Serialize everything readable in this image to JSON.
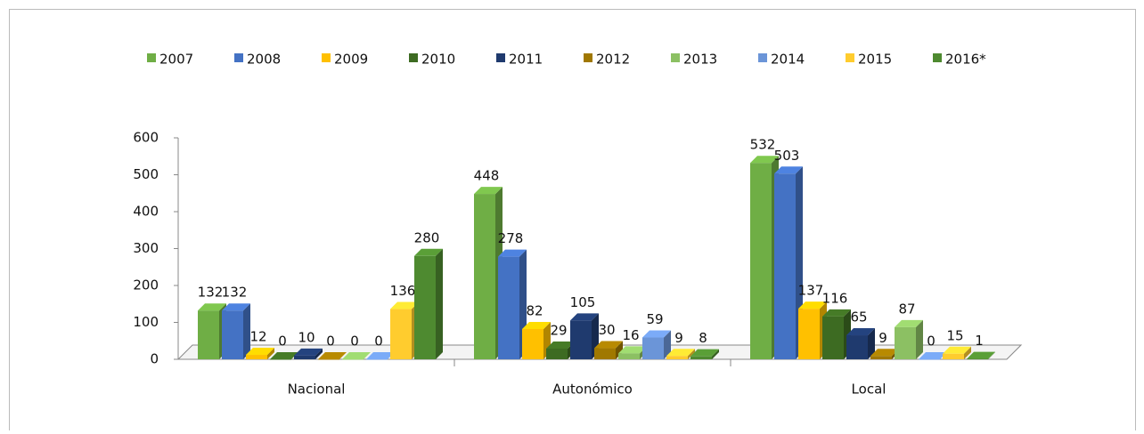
{
  "chart_data": {
    "type": "bar3d",
    "categories": [
      "Nacional",
      "Autonómico",
      "Local"
    ],
    "series": [
      {
        "name": "2007",
        "color": "#6fae45",
        "values": [
          132,
          448,
          532
        ]
      },
      {
        "name": "2008",
        "color": "#4472c4",
        "values": [
          132,
          278,
          503
        ]
      },
      {
        "name": "2009",
        "color": "#ffc000",
        "values": [
          12,
          82,
          137
        ]
      },
      {
        "name": "2010",
        "color": "#3d6b22",
        "values": [
          0,
          29,
          116
        ]
      },
      {
        "name": "2011",
        "color": "#1f3a6e",
        "values": [
          10,
          105,
          65
        ]
      },
      {
        "name": "2012",
        "color": "#a07800",
        "values": [
          0,
          30,
          9
        ]
      },
      {
        "name": "2013",
        "color": "#8cc063",
        "values": [
          0,
          16,
          87
        ]
      },
      {
        "name": "2014",
        "color": "#6b95d8",
        "values": [
          0,
          59,
          0
        ]
      },
      {
        "name": "2015",
        "color": "#ffcc2e",
        "values": [
          136,
          9,
          15
        ]
      },
      {
        "name": "2016*",
        "color": "#4e8a30",
        "values": [
          280,
          8,
          1
        ]
      }
    ],
    "ylim": [
      0,
      600
    ],
    "yticks": [
      0,
      100,
      200,
      300,
      400,
      500,
      600
    ],
    "legend": "top"
  }
}
